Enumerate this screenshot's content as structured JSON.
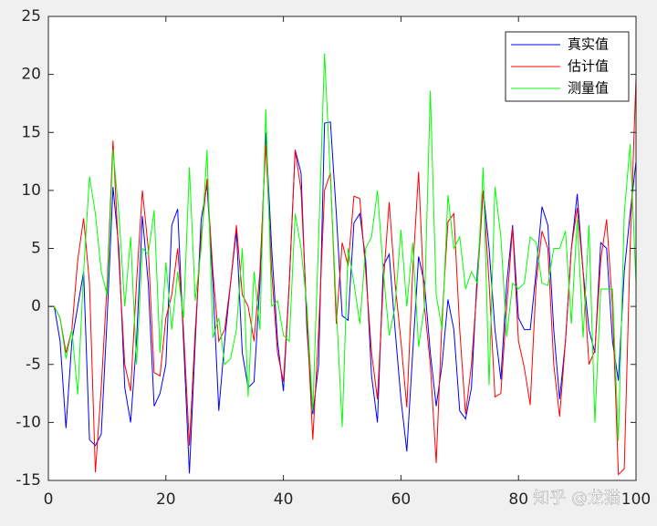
{
  "chart_data": {
    "type": "line",
    "x": [
      0,
      1,
      2,
      3,
      4,
      5,
      6,
      7,
      8,
      9,
      10,
      11,
      12,
      13,
      14,
      15,
      16,
      17,
      18,
      19,
      20,
      21,
      22,
      23,
      24,
      25,
      26,
      27,
      28,
      29,
      30,
      31,
      32,
      33,
      34,
      35,
      36,
      37,
      38,
      39,
      40,
      41,
      42,
      43,
      44,
      45,
      46,
      47,
      48,
      49,
      50,
      51,
      52,
      53,
      54,
      55,
      56,
      57,
      58,
      59,
      60,
      61,
      62,
      63,
      64,
      65,
      66,
      67,
      68,
      69,
      70,
      71,
      72,
      73,
      74,
      75,
      76,
      77,
      78,
      79,
      80,
      81,
      82,
      83,
      84,
      85,
      86,
      87,
      88,
      89,
      90,
      91,
      92,
      93,
      94,
      95,
      96,
      97,
      98,
      99,
      100
    ],
    "series": [
      {
        "name": "真实值",
        "color": "#0000ff",
        "values": [
          0,
          0,
          -3,
          -10.5,
          -3,
          0,
          3,
          -11.5,
          -12,
          -11,
          -1,
          10.3,
          5,
          -7,
          -10,
          -3,
          7.8,
          2,
          -8.6,
          -7.5,
          -5,
          7,
          8.4,
          -3,
          -14.4,
          -3,
          7.5,
          10.5,
          2,
          -9,
          -3,
          2,
          6.5,
          -4,
          -7,
          -6.5,
          2,
          15,
          5,
          -3,
          -7.3,
          2,
          13.5,
          11.5,
          -2,
          -9.3,
          -5,
          15.8,
          15.9,
          8,
          -0.8,
          -1.2,
          7.2,
          8,
          4,
          -6,
          -10,
          3.5,
          4.5,
          -2,
          -8,
          -12.5,
          -4,
          4.3,
          2,
          -4,
          -8.6,
          -5,
          0.6,
          -2,
          -9,
          -9.7,
          -7,
          3,
          10,
          5,
          -2,
          -6.3,
          2,
          7,
          -1,
          -2,
          -2,
          3,
          8.6,
          7,
          -2,
          -8,
          -3,
          5,
          9.7,
          3,
          -2,
          -4,
          5.5,
          5,
          -3,
          -6.4,
          3,
          8,
          12.5
        ]
      },
      {
        "name": "估计值",
        "color": "#ff0000",
        "values": [
          0,
          0,
          -1,
          -4,
          -2,
          4,
          7.6,
          2,
          -14.3,
          -7,
          2,
          14.3,
          4,
          -5,
          -7.3,
          2,
          10,
          5,
          -5.7,
          -6,
          -1,
          1,
          5,
          -2,
          -12,
          -2,
          6,
          11,
          3,
          -3,
          -2,
          2,
          7,
          1,
          0,
          -3,
          3,
          14,
          3,
          -4,
          -6.5,
          2,
          13.5,
          10,
          -1,
          -11.5,
          -2,
          10,
          11.5,
          -1.5,
          5.5,
          3.5,
          9.5,
          9.3,
          3,
          -4,
          -8,
          2,
          9,
          2,
          -3,
          -8.7,
          3,
          11.6,
          0,
          -5,
          -13.5,
          -1,
          7.3,
          8,
          -2,
          -9.3,
          -5,
          2,
          10,
          2,
          -7.8,
          -7.5,
          0,
          6.8,
          -3,
          -5.3,
          -8.5,
          2,
          6.5,
          5,
          -5,
          -9.5,
          -3,
          5,
          8.5,
          3,
          -5,
          -3.8,
          4,
          7.5,
          0,
          -14.5,
          -14,
          5,
          19.7
        ]
      },
      {
        "name": "测量值",
        "color": "#00ff00",
        "values": [
          0,
          0,
          -1,
          -4.5,
          -2,
          -7.6,
          3,
          11.2,
          8,
          3,
          1,
          13.5,
          8,
          0,
          6,
          -5,
          5,
          4.5,
          8.3,
          -4,
          3.8,
          -2,
          3,
          -1,
          12,
          0.5,
          5,
          13.5,
          -2.7,
          -1,
          -5,
          -4.5,
          -2,
          5,
          -7.8,
          3,
          -2,
          17,
          0,
          0.5,
          -2.5,
          -3,
          8,
          5,
          0,
          -9,
          6,
          21.8,
          11,
          0,
          -10.4,
          5,
          2,
          -1.5,
          5,
          6,
          10,
          3,
          -2.5,
          0,
          6.6,
          0,
          5.5,
          -3.5,
          0,
          18.6,
          1,
          -2,
          9.6,
          5,
          6,
          1.5,
          3,
          2,
          12,
          -6.8,
          10.3,
          6,
          -2.6,
          2,
          1.5,
          2,
          6,
          5.5,
          2,
          1.8,
          5,
          5,
          6.5,
          -1.5,
          7.5,
          -2.7,
          7,
          -10,
          1.5,
          1.5,
          1.5,
          -11.6,
          8,
          14,
          2
        ]
      }
    ],
    "xlim": [
      0,
      100
    ],
    "xticks": [
      0,
      20,
      40,
      60,
      80,
      100
    ],
    "ylim": [
      -15,
      25
    ],
    "yticks": [
      -15,
      -10,
      -5,
      0,
      5,
      10,
      15,
      20,
      25
    ],
    "legend": "northeast",
    "grid": false,
    "watermark": "知乎 @龙猫"
  }
}
